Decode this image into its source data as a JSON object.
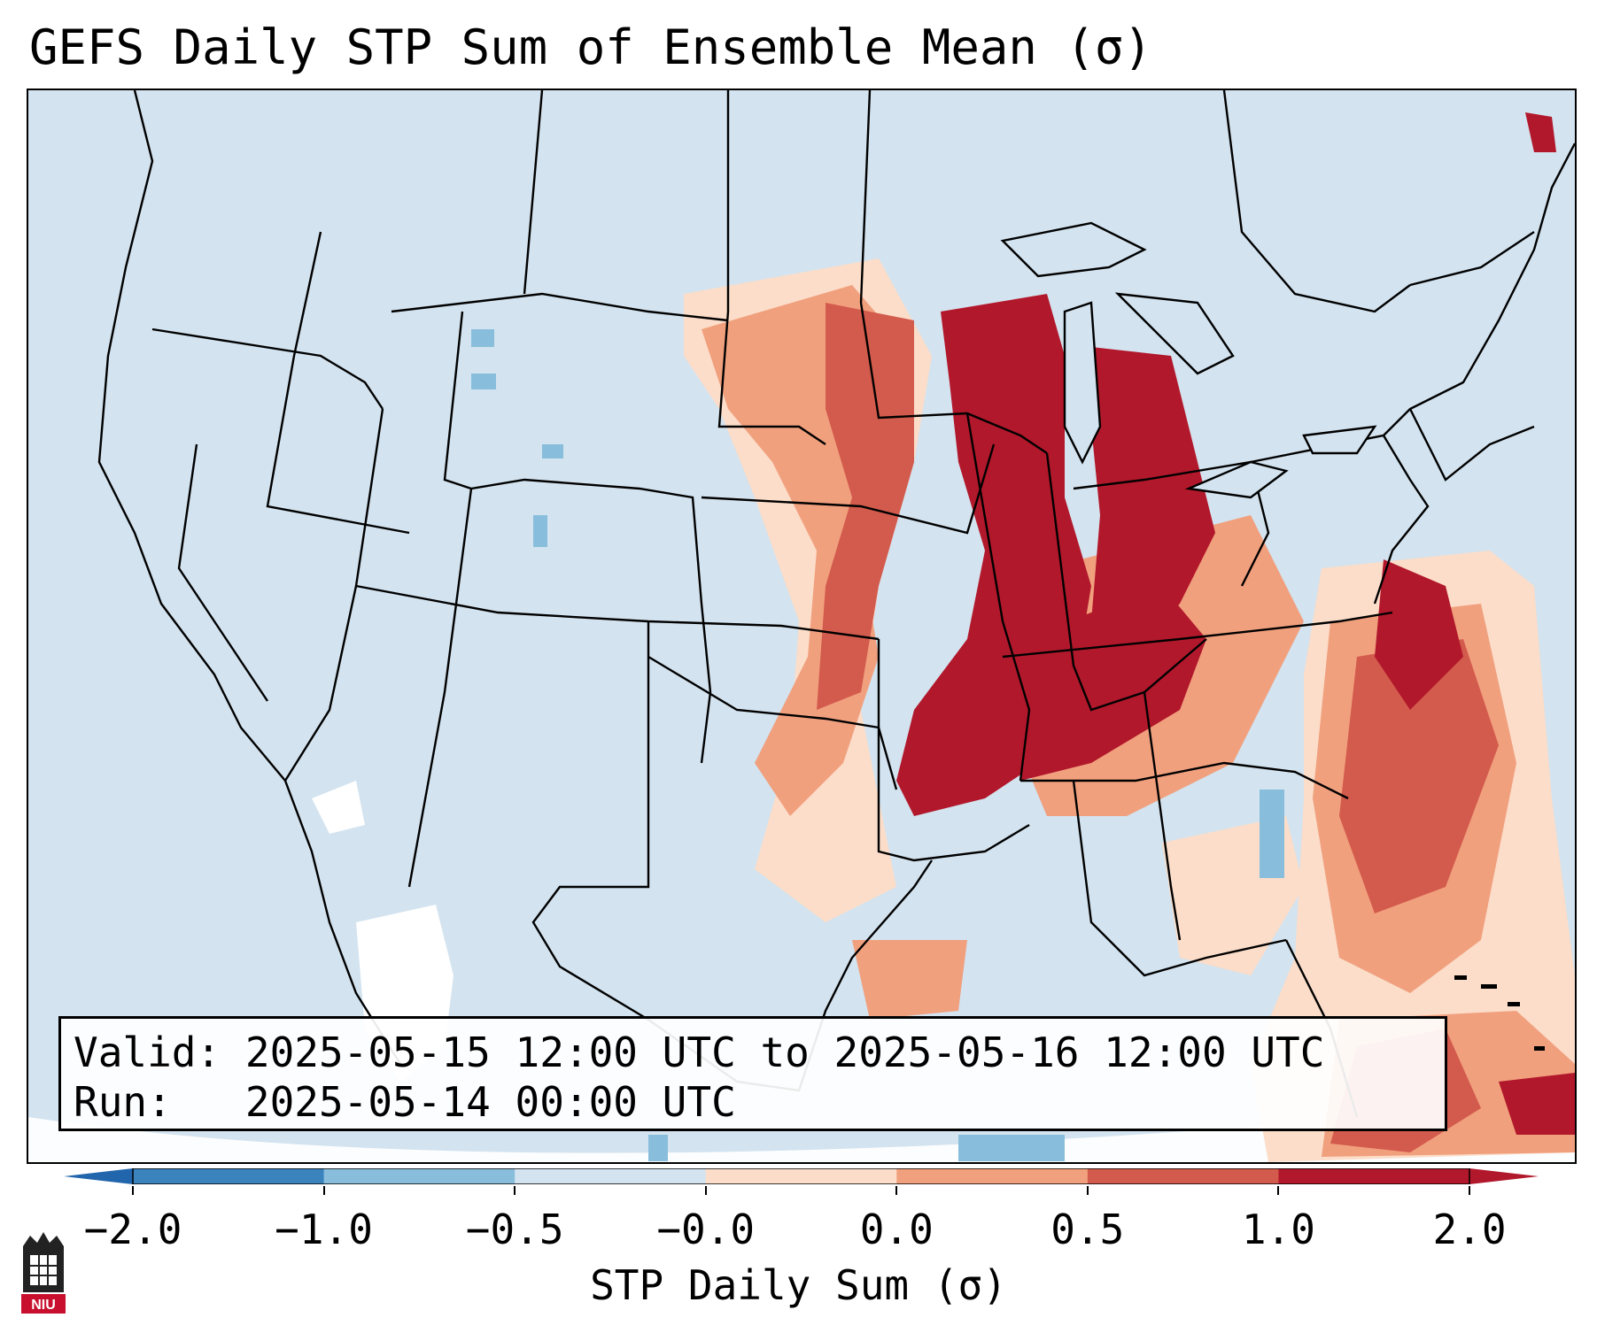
{
  "title": "GEFS Daily STP Sum of Ensemble Mean (σ)",
  "info": {
    "valid_label": "Valid:",
    "valid_text": "2025-05-15 12:00 UTC to 2025-05-16 12:00 UTC",
    "run_label": "Run:",
    "run_text": "2025-05-14 00:00 UTC"
  },
  "colorbar": {
    "label": "STP Daily Sum (σ)",
    "ticks": [
      "−2.0",
      "−1.0",
      "−0.5",
      "−0.0",
      "0.0",
      "0.5",
      "1.0",
      "2.0"
    ],
    "colors": [
      "#3b83bd",
      "#88bedc",
      "#d3e3ef",
      "#fbddc9",
      "#f1a07e",
      "#d35b4d",
      "#b2182b"
    ],
    "extend": "both"
  },
  "map": {
    "projection": "Lambert Conformal (CONUS)",
    "field": "STP daily sum anomaly (σ)",
    "background_color": "#d3e3ef",
    "highlight_region": "Central and eastern US, Mississippi / Ohio Valley, Great Lakes, Southeast coast",
    "peak_category": "≥ 2.0"
  },
  "logo": {
    "text": "NIU"
  }
}
